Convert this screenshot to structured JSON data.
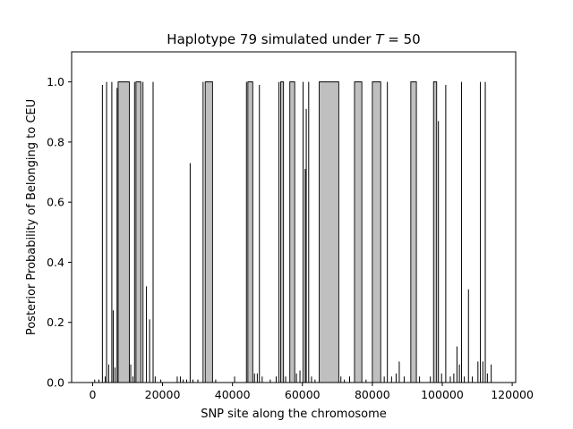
{
  "chart_data": {
    "type": "area",
    "title": "Haplotype 79 simulated under T = 50",
    "title_prefix": "Haplotype 79 simulated under ",
    "title_var": "T",
    "title_suffix": " =  50",
    "xlabel": "SNP site along the chromosome",
    "ylabel": "Posterior Probability of Belonging to CEU",
    "xlim": [
      -6000,
      121000
    ],
    "ylim": [
      0,
      1.1
    ],
    "xticks": [
      0,
      20000,
      40000,
      60000,
      80000,
      100000,
      120000
    ],
    "xtick_labels": [
      "0",
      "20000",
      "40000",
      "60000",
      "80000",
      "100000",
      "120000"
    ],
    "yticks": [
      0.0,
      0.2,
      0.4,
      0.6,
      0.8,
      1.0
    ],
    "ytick_labels": [
      "0.0",
      "0.2",
      "0.4",
      "0.6",
      "0.8",
      "1.0"
    ],
    "grid": false,
    "fill_color": "#bfbfbf",
    "line_color": "#000000",
    "regions": [
      {
        "start": 7300,
        "end": 10500,
        "value": 1.0
      },
      {
        "start": 12400,
        "end": 13800,
        "value": 1.0
      },
      {
        "start": 32200,
        "end": 34300,
        "value": 1.0
      },
      {
        "start": 44400,
        "end": 45800,
        "value": 1.0
      },
      {
        "start": 53800,
        "end": 54600,
        "value": 1.0
      },
      {
        "start": 56400,
        "end": 57800,
        "value": 1.0
      },
      {
        "start": 64800,
        "end": 70400,
        "value": 1.0
      },
      {
        "start": 74900,
        "end": 77000,
        "value": 1.0
      },
      {
        "start": 80000,
        "end": 82400,
        "value": 1.0
      },
      {
        "start": 91000,
        "end": 92600,
        "value": 1.0
      },
      {
        "start": 97500,
        "end": 98400,
        "value": 1.0
      }
    ],
    "spikes": [
      {
        "x": 600,
        "value": 0.01
      },
      {
        "x": 1800,
        "value": 0.01
      },
      {
        "x": 2800,
        "value": 0.99
      },
      {
        "x": 3600,
        "value": 0.02
      },
      {
        "x": 4000,
        "value": 1.0
      },
      {
        "x": 4600,
        "value": 0.06
      },
      {
        "x": 5500,
        "value": 1.0
      },
      {
        "x": 5900,
        "value": 0.24
      },
      {
        "x": 6400,
        "value": 0.05
      },
      {
        "x": 7000,
        "value": 0.98
      },
      {
        "x": 10900,
        "value": 0.06
      },
      {
        "x": 11500,
        "value": 0.02
      },
      {
        "x": 12000,
        "value": 1.0
      },
      {
        "x": 14400,
        "value": 1.0
      },
      {
        "x": 15400,
        "value": 0.32
      },
      {
        "x": 16300,
        "value": 0.21
      },
      {
        "x": 17300,
        "value": 1.0
      },
      {
        "x": 17900,
        "value": 0.02
      },
      {
        "x": 19500,
        "value": 0.01
      },
      {
        "x": 24200,
        "value": 0.02
      },
      {
        "x": 25100,
        "value": 0.02
      },
      {
        "x": 25900,
        "value": 0.01
      },
      {
        "x": 26900,
        "value": 0.01
      },
      {
        "x": 27900,
        "value": 0.73
      },
      {
        "x": 28700,
        "value": 0.01
      },
      {
        "x": 30100,
        "value": 0.01
      },
      {
        "x": 31600,
        "value": 1.0
      },
      {
        "x": 35200,
        "value": 0.01
      },
      {
        "x": 40600,
        "value": 0.02
      },
      {
        "x": 44000,
        "value": 1.0
      },
      {
        "x": 46300,
        "value": 0.03
      },
      {
        "x": 47100,
        "value": 0.03
      },
      {
        "x": 47700,
        "value": 0.99
      },
      {
        "x": 48500,
        "value": 0.02
      },
      {
        "x": 50800,
        "value": 0.01
      },
      {
        "x": 52500,
        "value": 0.02
      },
      {
        "x": 53300,
        "value": 1.0
      },
      {
        "x": 55200,
        "value": 0.02
      },
      {
        "x": 58300,
        "value": 0.03
      },
      {
        "x": 59300,
        "value": 0.04
      },
      {
        "x": 60200,
        "value": 1.0
      },
      {
        "x": 60800,
        "value": 0.71
      },
      {
        "x": 61100,
        "value": 0.91
      },
      {
        "x": 61800,
        "value": 1.0
      },
      {
        "x": 62600,
        "value": 0.02
      },
      {
        "x": 63600,
        "value": 0.01
      },
      {
        "x": 71000,
        "value": 0.02
      },
      {
        "x": 72000,
        "value": 0.01
      },
      {
        "x": 73500,
        "value": 0.02
      },
      {
        "x": 78200,
        "value": 0.01
      },
      {
        "x": 83400,
        "value": 0.02
      },
      {
        "x": 84300,
        "value": 1.0
      },
      {
        "x": 85500,
        "value": 0.02
      },
      {
        "x": 86800,
        "value": 0.03
      },
      {
        "x": 87700,
        "value": 0.07
      },
      {
        "x": 89100,
        "value": 0.02
      },
      {
        "x": 93500,
        "value": 0.02
      },
      {
        "x": 96600,
        "value": 0.02
      },
      {
        "x": 98900,
        "value": 0.87
      },
      {
        "x": 99800,
        "value": 0.03
      },
      {
        "x": 101000,
        "value": 0.99
      },
      {
        "x": 102300,
        "value": 0.02
      },
      {
        "x": 103300,
        "value": 0.03
      },
      {
        "x": 104200,
        "value": 0.12
      },
      {
        "x": 104900,
        "value": 0.06
      },
      {
        "x": 105500,
        "value": 1.0
      },
      {
        "x": 106300,
        "value": 0.02
      },
      {
        "x": 107500,
        "value": 0.31
      },
      {
        "x": 108600,
        "value": 0.02
      },
      {
        "x": 110200,
        "value": 0.07
      },
      {
        "x": 110900,
        "value": 1.0
      },
      {
        "x": 111600,
        "value": 0.07
      },
      {
        "x": 112300,
        "value": 1.0
      },
      {
        "x": 112900,
        "value": 0.03
      },
      {
        "x": 114000,
        "value": 0.06
      }
    ]
  }
}
